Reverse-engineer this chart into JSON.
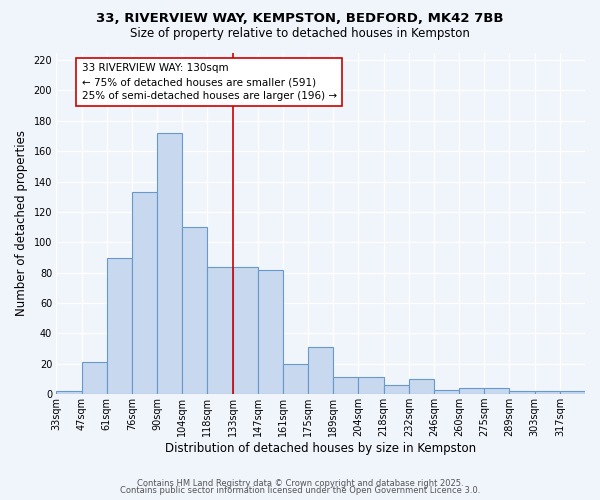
{
  "title_line1": "33, RIVERVIEW WAY, KEMPSTON, BEDFORD, MK42 7BB",
  "title_line2": "Size of property relative to detached houses in Kempston",
  "xlabel": "Distribution of detached houses by size in Kempston",
  "ylabel": "Number of detached properties",
  "bin_labels": [
    "33sqm",
    "47sqm",
    "61sqm",
    "76sqm",
    "90sqm",
    "104sqm",
    "118sqm",
    "133sqm",
    "147sqm",
    "161sqm",
    "175sqm",
    "189sqm",
    "204sqm",
    "218sqm",
    "232sqm",
    "246sqm",
    "260sqm",
    "275sqm",
    "289sqm",
    "303sqm",
    "317sqm"
  ],
  "heights": [
    2,
    21,
    90,
    133,
    172,
    110,
    84,
    84,
    82,
    20,
    31,
    11,
    11,
    6,
    10,
    3,
    4,
    4,
    2,
    2,
    2
  ],
  "bar_facecolor": "#c8d8ee",
  "bar_edgecolor": "#6699cc",
  "background_color": "#f0f4fb",
  "grid_color": "#d0d8e8",
  "vline_index": 7,
  "vline_color": "#cc0000",
  "annotation_line1": "33 RIVERVIEW WAY: 130sqm",
  "annotation_line2": "← 75% of detached houses are smaller (591)",
  "annotation_line3": "25% of semi-detached houses are larger (196) →",
  "annotation_box_facecolor": "#ffffff",
  "annotation_box_edgecolor": "#cc0000",
  "ylim": [
    0,
    225
  ],
  "yticks": [
    0,
    20,
    40,
    60,
    80,
    100,
    120,
    140,
    160,
    180,
    200,
    220
  ],
  "footer_line1": "Contains HM Land Registry data © Crown copyright and database right 2025.",
  "footer_line2": "Contains public sector information licensed under the Open Government Licence 3.0.",
  "title_fontsize": 9.5,
  "subtitle_fontsize": 8.5,
  "tick_fontsize": 7,
  "label_fontsize": 8.5,
  "annotation_fontsize": 7.5,
  "footer_fontsize": 6
}
